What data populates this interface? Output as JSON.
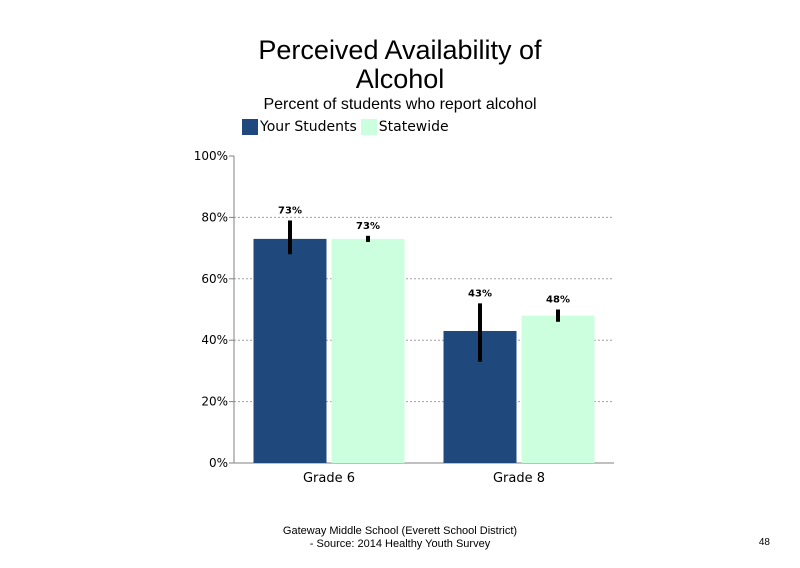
{
  "page": {
    "footer_line1": "Gateway Middle School (Everett School District)",
    "footer_line2": "- Source: 2014 Healthy Youth Survey",
    "page_number": "48"
  },
  "chart_data": {
    "type": "bar",
    "title_line1": "Perceived Availability of",
    "title_line2": "Alcohol",
    "subtitle": "Percent of students  who report alcohol",
    "categories": [
      "Grade 6",
      "Grade 8"
    ],
    "series": [
      {
        "name": "Your Students",
        "color": "#1F497D",
        "values": [
          73,
          43
        ],
        "labels": [
          "73%",
          "43%"
        ],
        "error_low": [
          68,
          33
        ],
        "error_high": [
          79,
          52
        ]
      },
      {
        "name": "Statewide",
        "color": "#CCFFDD",
        "values": [
          73,
          48
        ],
        "labels": [
          "73%",
          "48%"
        ],
        "error_low": [
          72,
          46
        ],
        "error_high": [
          74,
          50
        ]
      }
    ],
    "ylim": [
      0,
      100
    ],
    "yticks": [
      0,
      20,
      40,
      60,
      80,
      100
    ],
    "ytick_labels": [
      "0%",
      "20%",
      "40%",
      "60%",
      "80%",
      "100%"
    ],
    "grid": true,
    "legend_position": "top-left"
  }
}
